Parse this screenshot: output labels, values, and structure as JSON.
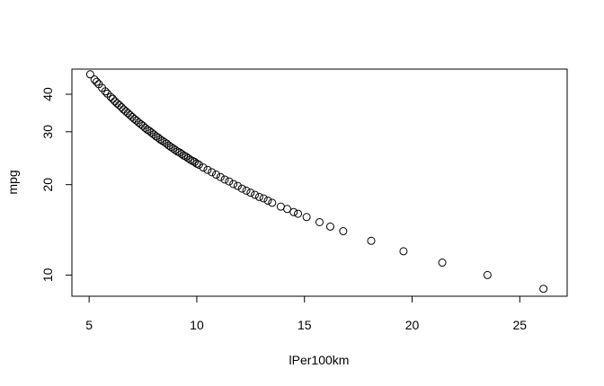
{
  "chart_data": {
    "type": "scatter",
    "title": "",
    "xlabel": "lPer100km",
    "ylabel": "mpg",
    "xlim": [
      4.2,
      27.2
    ],
    "ylim": [
      8.5,
      48.5
    ],
    "y_scale": "log",
    "grid": false,
    "x_ticks": [
      5,
      10,
      15,
      20,
      25
    ],
    "y_ticks": [
      10,
      20,
      30,
      40
    ],
    "marker": "open-circle",
    "x": [
      5.05,
      5.25,
      5.35,
      5.45,
      5.6,
      5.75,
      5.85,
      6.0,
      6.1,
      6.2,
      6.3,
      6.4,
      6.5,
      6.6,
      6.7,
      6.8,
      6.9,
      7.0,
      7.1,
      7.2,
      7.3,
      7.4,
      7.5,
      7.6,
      7.7,
      7.8,
      7.9,
      8.0,
      8.1,
      8.2,
      8.3,
      8.4,
      8.5,
      8.6,
      8.7,
      8.8,
      8.9,
      9.0,
      9.1,
      9.2,
      9.3,
      9.4,
      9.5,
      9.6,
      9.7,
      9.8,
      9.9,
      10.0,
      10.1,
      10.3,
      10.5,
      10.7,
      10.9,
      11.1,
      11.3,
      11.5,
      11.7,
      11.9,
      12.1,
      12.3,
      12.5,
      12.7,
      12.9,
      13.1,
      13.3,
      13.5,
      13.9,
      14.2,
      14.5,
      14.7,
      15.1,
      15.7,
      16.2,
      16.8,
      18.1,
      19.6,
      21.4,
      23.5,
      26.1
    ],
    "y": [
      46.6,
      44.8,
      44.0,
      43.2,
      42.0,
      40.9,
      40.2,
      39.2,
      38.6,
      37.9,
      37.3,
      36.8,
      36.2,
      35.6,
      35.1,
      34.6,
      34.1,
      33.6,
      33.1,
      32.7,
      32.2,
      31.8,
      31.4,
      30.9,
      30.5,
      30.2,
      29.8,
      29.4,
      29.0,
      28.7,
      28.3,
      28.0,
      27.7,
      27.4,
      27.0,
      26.7,
      26.4,
      26.1,
      25.8,
      25.6,
      25.3,
      25.0,
      24.8,
      24.5,
      24.2,
      24.0,
      23.8,
      23.5,
      23.3,
      22.8,
      22.4,
      22.0,
      21.6,
      21.2,
      20.8,
      20.5,
      20.1,
      19.8,
      19.4,
      19.1,
      18.8,
      18.5,
      18.2,
      18.0,
      17.7,
      17.4,
      16.9,
      16.6,
      16.2,
      16.0,
      15.6,
      15.0,
      14.5,
      14.0,
      13.0,
      12.0,
      11.0,
      10.0,
      9.0
    ]
  }
}
